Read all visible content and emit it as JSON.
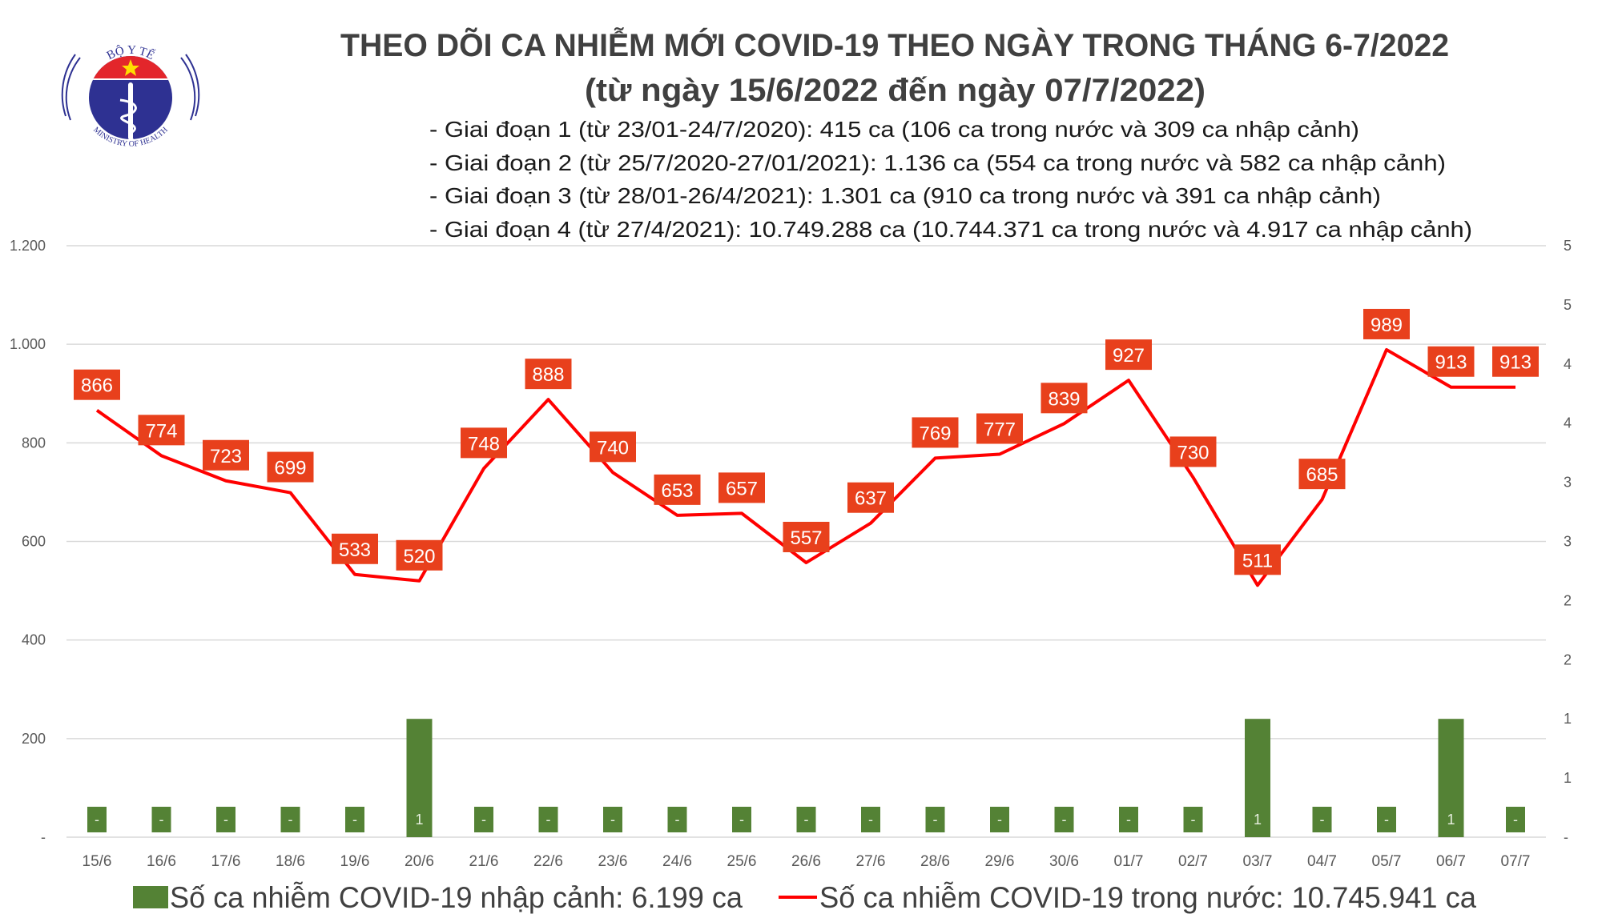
{
  "header": {
    "logo_text_top": "BỘ Y TẾ",
    "logo_text_bottom": "MINISTRY OF HEALTH",
    "title": "THEO DÕI CA NHIỄM MỚI COVID-19 THEO NGÀY TRONG THÁNG 6-7/2022",
    "subtitle": "(từ ngày 15/6/2022 đến ngày 07/7/2022)",
    "info_lines": [
      "- Giai đoạn 1 (từ 23/01-24/7/2020): 415 ca (106 ca trong nước và 309 ca nhập cảnh)",
      "- Giai đoạn 2 (từ 25/7/2020-27/01/2021): 1.136 ca (554 ca trong nước và 582 ca nhập cảnh)",
      "- Giai đoạn 3 (từ 28/01-26/4/2021): 1.301 ca (910 ca trong nước và 391 ca nhập cảnh)",
      "- Giai đoạn 4 (từ 27/4/2021): 10.749.288 ca (10.744.371 ca trong nước và 4.917 ca nhập cảnh)"
    ]
  },
  "chart_data": {
    "type": "bar+line",
    "categories": [
      "15/6",
      "16/6",
      "17/6",
      "18/6",
      "19/6",
      "20/6",
      "21/6",
      "22/6",
      "23/6",
      "24/6",
      "25/6",
      "26/6",
      "27/6",
      "28/6",
      "29/6",
      "30/6",
      "01/7",
      "02/7",
      "03/7",
      "04/7",
      "05/7",
      "06/7",
      "07/7"
    ],
    "series": [
      {
        "name": "Số ca nhiễm COVID-19 nhập cảnh: 6.199 ca",
        "type": "bar",
        "axis": "right",
        "color": "#548235",
        "values": [
          0,
          0,
          0,
          0,
          0,
          1,
          0,
          0,
          0,
          0,
          0,
          0,
          0,
          0,
          0,
          0,
          0,
          0,
          1,
          0,
          0,
          1,
          0
        ],
        "data_labels": [
          "-",
          "-",
          "-",
          "-",
          "-",
          "1",
          "-",
          "-",
          "-",
          "-",
          "-",
          "-",
          "-",
          "-",
          "-",
          "-",
          "-",
          "-",
          "1",
          "-",
          "-",
          "1",
          "-"
        ]
      },
      {
        "name": "Số ca nhiễm COVID-19 trong nước: 10.745.941 ca",
        "type": "line",
        "axis": "left",
        "color": "#ff0000",
        "values": [
          866,
          774,
          723,
          699,
          533,
          520,
          748,
          888,
          740,
          653,
          657,
          557,
          637,
          769,
          777,
          839,
          927,
          730,
          511,
          685,
          989,
          913,
          913
        ]
      }
    ],
    "y_left": {
      "range": [
        0,
        1200
      ],
      "tick_labels": [
        "-",
        "200",
        "400",
        "600",
        "800",
        "1.000",
        "1.200"
      ]
    },
    "y_right": {
      "range": [
        0,
        5
      ],
      "tick_labels": [
        "-",
        "1",
        "1",
        "2",
        "2",
        "3",
        "3",
        "4",
        "4",
        "5",
        "5"
      ]
    },
    "grid": true,
    "legend": "bottom",
    "label_color": "#e8401c"
  }
}
